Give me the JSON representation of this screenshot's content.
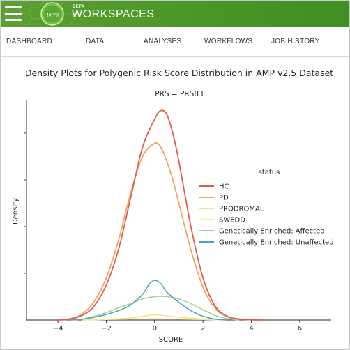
{
  "app": {
    "logo_text": "Terra",
    "beta_label": "BETA",
    "title": "WORKSPACES"
  },
  "nav": {
    "tabs": [
      {
        "label": "DASHBOARD"
      },
      {
        "label": "DATA"
      },
      {
        "label": "ANALYSES"
      },
      {
        "label": "WORKFLOWS"
      },
      {
        "label": "JOB HISTORY"
      }
    ]
  },
  "colors": {
    "header_green": "#4f9a2a",
    "HC": "#e05c4c",
    "PD": "#f4a460",
    "PRODROMAL": "#f8e08a",
    "SWEDD": "#f0f0a0",
    "Affected": "#9fd492",
    "Unaffected": "#4aa0c0"
  },
  "chart_data": {
    "type": "line",
    "title": "Density Plots for Polygenic Risk Score Distribution in AMP v2.5 Dataset",
    "subtitle": "PRS = PRS83",
    "xlabel": "SCORE",
    "ylabel": "Density",
    "xlim": [
      -5.3,
      7.3
    ],
    "ylim": [
      0,
      0.47
    ],
    "xticks": [
      -4,
      -2,
      0,
      2,
      4,
      6
    ],
    "xtick_labels": [
      "−4",
      "−2",
      "0",
      "2",
      "4",
      "6"
    ],
    "yticks": [
      0.1,
      0.2,
      0.3,
      0.4
    ],
    "grid": false,
    "legend": {
      "title": "status",
      "placement": "right"
    },
    "series": [
      {
        "name": "HC",
        "color": "#e05c4c",
        "width": 1.8,
        "x": [
          -4,
          -3.5,
          -3,
          -2.5,
          -2,
          -1.5,
          -1,
          -0.5,
          0,
          0.25,
          0.5,
          0.75,
          1,
          1.5,
          2,
          2.5,
          3,
          3.5,
          4,
          4.5
        ],
        "y": [
          0.0,
          0.002,
          0.01,
          0.03,
          0.075,
          0.15,
          0.26,
          0.37,
          0.43,
          0.448,
          0.44,
          0.4,
          0.34,
          0.2,
          0.09,
          0.03,
          0.008,
          0.002,
          0.0005,
          0.0
        ]
      },
      {
        "name": "PD",
        "color": "#f4a460",
        "width": 1.8,
        "x": [
          -4,
          -3.5,
          -3,
          -2.5,
          -2,
          -1.5,
          -1,
          -0.5,
          0,
          0.25,
          0.5,
          0.75,
          1,
          1.5,
          2,
          2.5,
          3,
          3.5,
          4,
          4.5
        ],
        "y": [
          0.0,
          0.003,
          0.013,
          0.04,
          0.09,
          0.17,
          0.27,
          0.35,
          0.378,
          0.37,
          0.34,
          0.3,
          0.25,
          0.15,
          0.07,
          0.025,
          0.007,
          0.002,
          0.0005,
          0.0
        ]
      },
      {
        "name": "PRODROMAL",
        "color": "#f8e08a",
        "width": 1.5,
        "x": [
          -3,
          -2,
          -1,
          -0.5,
          0,
          0.5,
          1,
          2,
          3
        ],
        "y": [
          0.0,
          0.002,
          0.004,
          0.008,
          0.011,
          0.009,
          0.006,
          0.002,
          0.0
        ]
      },
      {
        "name": "SWEDD",
        "color": "#f0f0a0",
        "width": 1.5,
        "x": [
          -3,
          -2,
          -1,
          0,
          1,
          2,
          3
        ],
        "y": [
          0.0,
          0.001,
          0.002,
          0.003,
          0.002,
          0.001,
          0.0
        ]
      },
      {
        "name": "Genetically Enriched: Affected",
        "color": "#9fd492",
        "width": 1.5,
        "x": [
          -3.5,
          -3,
          -2.5,
          -2,
          -1.5,
          -1,
          -0.5,
          0,
          0.5,
          1,
          1.5,
          2,
          2.5,
          3,
          3.5
        ],
        "y": [
          0.0,
          0.002,
          0.008,
          0.016,
          0.026,
          0.035,
          0.045,
          0.05,
          0.05,
          0.045,
          0.035,
          0.022,
          0.01,
          0.003,
          0.0
        ]
      },
      {
        "name": "Genetically Enriched: Unaffected",
        "color": "#4aa0c0",
        "width": 1.5,
        "x": [
          -3.5,
          -3,
          -2.5,
          -2,
          -1.5,
          -1,
          -0.5,
          -0.25,
          0,
          0.25,
          0.5,
          1,
          1.5,
          2,
          2.5,
          3
        ],
        "y": [
          0.0,
          0.002,
          0.006,
          0.012,
          0.02,
          0.032,
          0.055,
          0.075,
          0.085,
          0.078,
          0.06,
          0.038,
          0.02,
          0.008,
          0.002,
          0.0
        ]
      }
    ]
  }
}
